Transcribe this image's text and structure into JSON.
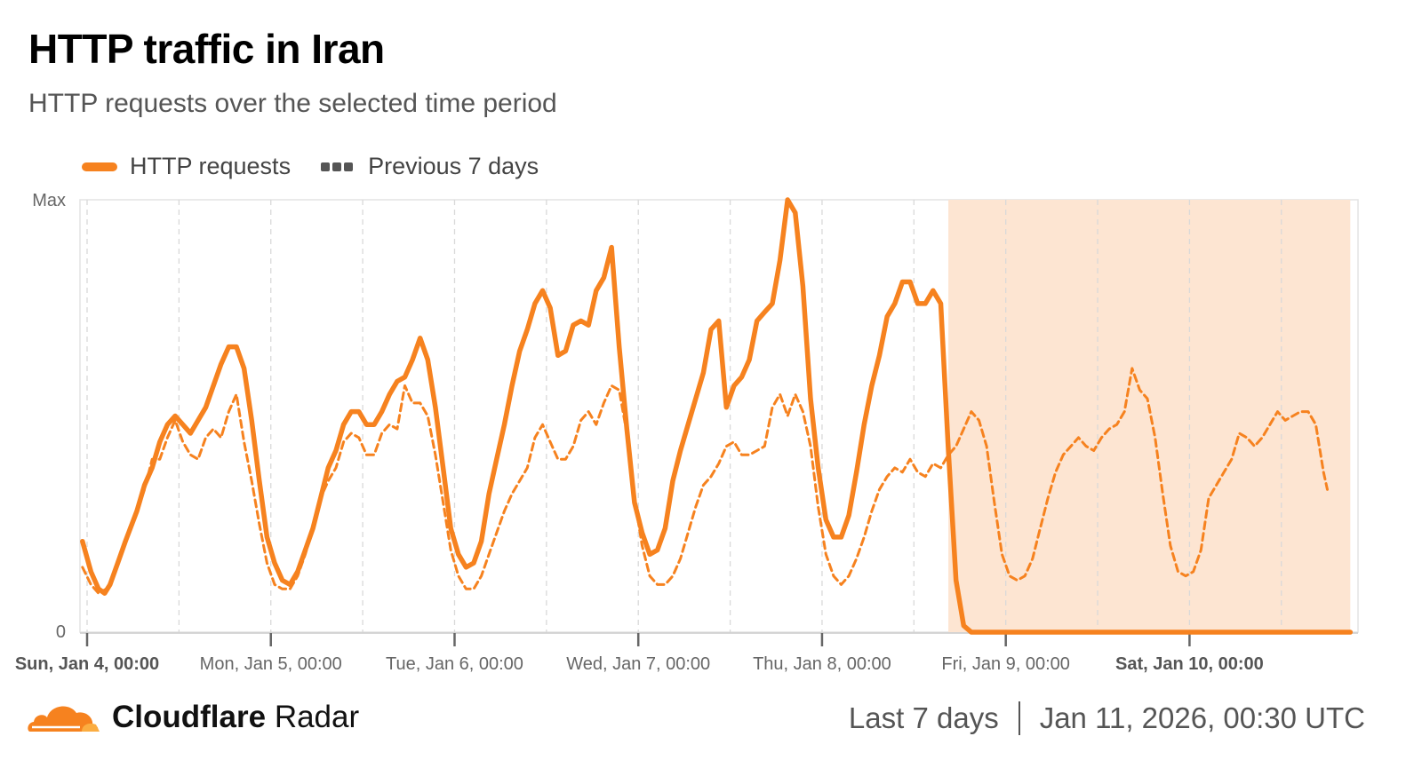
{
  "header": {
    "title": "HTTP traffic in Iran",
    "subtitle": "HTTP requests over the selected time period"
  },
  "legend": {
    "current": "HTTP requests",
    "previous": "Previous 7 days"
  },
  "colors": {
    "accent": "#f6821f",
    "highlight": "#fde5d2",
    "grid": "#d9d9d9",
    "axis": "#666666"
  },
  "footer": {
    "brand_bold": "Cloudflare",
    "brand_rest": "Radar",
    "period": "Last 7 days",
    "timestamp": "Jan 11, 2026, 00:30 UTC"
  },
  "icons": {
    "logo": "cloudflare-cloud-icon"
  },
  "chart_data": {
    "type": "line",
    "ylabel_max": "Max",
    "ylabel_min": "0",
    "ylim": [
      0,
      100
    ],
    "x_range": [
      0,
      165
    ],
    "x_unit": "hours since Sun, Jan 4, 00:00 UTC",
    "x_ticks": [
      {
        "x": 0,
        "label": "Sun, Jan 4, 00:00",
        "bold": true
      },
      {
        "x": 24,
        "label": "Mon, Jan 5, 00:00",
        "bold": false
      },
      {
        "x": 48,
        "label": "Tue, Jan 6, 00:00",
        "bold": false
      },
      {
        "x": 72,
        "label": "Wed, Jan 7, 00:00",
        "bold": false
      },
      {
        "x": 96,
        "label": "Thu, Jan 8, 00:00",
        "bold": false
      },
      {
        "x": 120,
        "label": "Fri, Jan 9, 00:00",
        "bold": false
      },
      {
        "x": 144,
        "label": "Sat, Jan 10, 00:00",
        "bold": true
      }
    ],
    "grid": true,
    "highlight_range": [
      112.5,
      165
    ],
    "series": [
      {
        "name": "HTTP requests",
        "style": "solid",
        "points": [
          [
            -0.6,
            21
          ],
          [
            0.5,
            14
          ],
          [
            1.5,
            10
          ],
          [
            2.3,
            9
          ],
          [
            3,
            11
          ],
          [
            4,
            16
          ],
          [
            5,
            21
          ],
          [
            6.5,
            28
          ],
          [
            7.5,
            34
          ],
          [
            8.5,
            38
          ],
          [
            9.5,
            44
          ],
          [
            10.5,
            48
          ],
          [
            11.5,
            50
          ],
          [
            12.5,
            48
          ],
          [
            13.5,
            46
          ],
          [
            14.5,
            49
          ],
          [
            15.5,
            52
          ],
          [
            16.5,
            57
          ],
          [
            17.5,
            62
          ],
          [
            18.5,
            66
          ],
          [
            19.5,
            66
          ],
          [
            20.5,
            61
          ],
          [
            21.5,
            49
          ],
          [
            22.5,
            35
          ],
          [
            23.5,
            22
          ],
          [
            24.5,
            16
          ],
          [
            25.5,
            12
          ],
          [
            26.5,
            11
          ],
          [
            27.5,
            14
          ],
          [
            28.5,
            19
          ],
          [
            29.5,
            24
          ],
          [
            30.5,
            31
          ],
          [
            31.5,
            38
          ],
          [
            32.5,
            42
          ],
          [
            33.5,
            48
          ],
          [
            34.5,
            51
          ],
          [
            35.5,
            51
          ],
          [
            36.5,
            48
          ],
          [
            37.5,
            48
          ],
          [
            38.5,
            51
          ],
          [
            39.5,
            55
          ],
          [
            40.5,
            58
          ],
          [
            41.5,
            59
          ],
          [
            42.5,
            63
          ],
          [
            43.5,
            68
          ],
          [
            44.5,
            63
          ],
          [
            45.5,
            52
          ],
          [
            46.5,
            38
          ],
          [
            47.5,
            24
          ],
          [
            48.5,
            18
          ],
          [
            49.5,
            15
          ],
          [
            50.5,
            16
          ],
          [
            51.5,
            21
          ],
          [
            52.5,
            32
          ],
          [
            53.5,
            40
          ],
          [
            54.5,
            48
          ],
          [
            55.5,
            57
          ],
          [
            56.5,
            65
          ],
          [
            57.5,
            70
          ],
          [
            58.5,
            76
          ],
          [
            59.5,
            79
          ],
          [
            60.5,
            75
          ],
          [
            61.5,
            64
          ],
          [
            62.5,
            65
          ],
          [
            63.5,
            71
          ],
          [
            64.5,
            72
          ],
          [
            65.5,
            71
          ],
          [
            66.5,
            79
          ],
          [
            67.5,
            82
          ],
          [
            68.5,
            89
          ],
          [
            69.5,
            66
          ],
          [
            70.5,
            47
          ],
          [
            71.5,
            30
          ],
          [
            72.5,
            23
          ],
          [
            73.5,
            18
          ],
          [
            74.5,
            19
          ],
          [
            75.5,
            24
          ],
          [
            76.5,
            35
          ],
          [
            77.5,
            42
          ],
          [
            78.5,
            48
          ],
          [
            79.5,
            54
          ],
          [
            80.5,
            60
          ],
          [
            81.5,
            70
          ],
          [
            82.5,
            72
          ],
          [
            83.5,
            52
          ],
          [
            84.5,
            57
          ],
          [
            85.5,
            59
          ],
          [
            86.5,
            63
          ],
          [
            87.5,
            72
          ],
          [
            88.5,
            74
          ],
          [
            89.5,
            76
          ],
          [
            90.5,
            86
          ],
          [
            91.5,
            100
          ],
          [
            92.5,
            97
          ],
          [
            93.5,
            80
          ],
          [
            94.5,
            54
          ],
          [
            95.5,
            38
          ],
          [
            96.5,
            26
          ],
          [
            97.5,
            22
          ],
          [
            98.5,
            22
          ],
          [
            99.5,
            27
          ],
          [
            100.5,
            37
          ],
          [
            101.5,
            48
          ],
          [
            102.5,
            57
          ],
          [
            103.5,
            64
          ],
          [
            104.5,
            73
          ],
          [
            105.5,
            76
          ],
          [
            106.5,
            81
          ],
          [
            107.5,
            81
          ],
          [
            108.5,
            76
          ],
          [
            109.5,
            76
          ],
          [
            110.5,
            79
          ],
          [
            111.5,
            76
          ],
          [
            112.5,
            42
          ],
          [
            113.5,
            12
          ],
          [
            114.5,
            1.5
          ],
          [
            115.5,
            0
          ],
          [
            120,
            0
          ],
          [
            130,
            0
          ],
          [
            140,
            0
          ],
          [
            150,
            0
          ],
          [
            165,
            0
          ]
        ]
      },
      {
        "name": "Previous 7 days",
        "style": "dashed",
        "points": [
          [
            -0.6,
            15
          ],
          [
            0.5,
            11
          ],
          [
            1.5,
            9
          ],
          [
            2.5,
            10
          ],
          [
            3.5,
            13
          ],
          [
            4.5,
            18
          ],
          [
            5.5,
            24
          ],
          [
            6.5,
            28
          ],
          [
            7.5,
            33
          ],
          [
            8.5,
            40
          ],
          [
            9.5,
            40
          ],
          [
            10.5,
            45
          ],
          [
            11.5,
            49
          ],
          [
            12.5,
            44
          ],
          [
            13.5,
            41
          ],
          [
            14.5,
            40
          ],
          [
            15.5,
            45
          ],
          [
            16.5,
            47
          ],
          [
            17.5,
            45
          ],
          [
            18.5,
            51
          ],
          [
            19.5,
            55
          ],
          [
            20.5,
            44
          ],
          [
            21.5,
            35
          ],
          [
            22.5,
            25
          ],
          [
            23.5,
            16
          ],
          [
            24.5,
            11
          ],
          [
            25.5,
            10
          ],
          [
            26.5,
            10
          ],
          [
            27.5,
            13
          ],
          [
            28.5,
            18
          ],
          [
            29.5,
            24
          ],
          [
            30.5,
            31
          ],
          [
            31.5,
            35
          ],
          [
            32.5,
            38
          ],
          [
            33.5,
            44
          ],
          [
            34.5,
            46
          ],
          [
            35.5,
            45
          ],
          [
            36.5,
            41
          ],
          [
            37.5,
            41
          ],
          [
            38.5,
            46
          ],
          [
            39.5,
            48
          ],
          [
            40.5,
            47
          ],
          [
            41.5,
            57
          ],
          [
            42.5,
            53
          ],
          [
            43.5,
            53
          ],
          [
            44.5,
            50
          ],
          [
            45.5,
            41
          ],
          [
            46.5,
            30
          ],
          [
            47.5,
            19
          ],
          [
            48.5,
            13
          ],
          [
            49.5,
            10
          ],
          [
            50.5,
            10
          ],
          [
            51.5,
            13
          ],
          [
            52.5,
            18
          ],
          [
            53.5,
            23
          ],
          [
            54.5,
            28
          ],
          [
            55.5,
            32
          ],
          [
            56.5,
            35
          ],
          [
            57.5,
            38
          ],
          [
            58.5,
            45
          ],
          [
            59.5,
            48
          ],
          [
            60.5,
            44
          ],
          [
            61.5,
            40
          ],
          [
            62.5,
            40
          ],
          [
            63.5,
            43
          ],
          [
            64.5,
            49
          ],
          [
            65.5,
            51
          ],
          [
            66.5,
            48
          ],
          [
            67.5,
            53
          ],
          [
            68.5,
            57
          ],
          [
            69.5,
            56
          ],
          [
            70.5,
            46
          ],
          [
            71.5,
            31
          ],
          [
            72.5,
            20
          ],
          [
            73.5,
            13
          ],
          [
            74.5,
            11
          ],
          [
            75.5,
            11
          ],
          [
            76.5,
            13
          ],
          [
            77.5,
            17
          ],
          [
            78.5,
            23
          ],
          [
            79.5,
            29
          ],
          [
            80.5,
            34
          ],
          [
            81.5,
            36
          ],
          [
            82.5,
            39
          ],
          [
            83.5,
            43
          ],
          [
            84.5,
            44
          ],
          [
            85.5,
            41
          ],
          [
            86.5,
            41
          ],
          [
            87.5,
            42
          ],
          [
            88.5,
            43
          ],
          [
            89.5,
            52
          ],
          [
            90.5,
            55
          ],
          [
            91.5,
            50
          ],
          [
            92.5,
            55
          ],
          [
            93.5,
            51
          ],
          [
            94.5,
            43
          ],
          [
            95.5,
            29
          ],
          [
            96.5,
            18
          ],
          [
            97.5,
            13
          ],
          [
            98.5,
            11
          ],
          [
            99.5,
            13
          ],
          [
            100.5,
            17
          ],
          [
            101.5,
            22
          ],
          [
            102.5,
            28
          ],
          [
            103.5,
            33
          ],
          [
            104.5,
            36
          ],
          [
            105.5,
            38
          ],
          [
            106.5,
            37
          ],
          [
            107.5,
            40
          ],
          [
            108.5,
            37
          ],
          [
            109.5,
            36
          ],
          [
            110.5,
            39
          ],
          [
            111.5,
            38
          ],
          [
            112.5,
            41
          ],
          [
            113.5,
            43
          ],
          [
            114.5,
            47
          ],
          [
            115.5,
            51
          ],
          [
            116.5,
            49
          ],
          [
            117.5,
            43
          ],
          [
            118.5,
            30
          ],
          [
            119.5,
            18
          ],
          [
            120.5,
            13
          ],
          [
            121.5,
            12
          ],
          [
            122.5,
            13
          ],
          [
            123.5,
            17
          ],
          [
            124.5,
            24
          ],
          [
            125.5,
            31
          ],
          [
            126.5,
            37
          ],
          [
            127.5,
            41
          ],
          [
            128.5,
            43
          ],
          [
            129.5,
            45
          ],
          [
            130.5,
            43
          ],
          [
            131.5,
            42
          ],
          [
            132.5,
            45
          ],
          [
            133.5,
            47
          ],
          [
            134.5,
            48
          ],
          [
            135.5,
            51
          ],
          [
            136.5,
            61
          ],
          [
            137.5,
            56
          ],
          [
            138.5,
            54
          ],
          [
            139.5,
            45
          ],
          [
            140.5,
            32
          ],
          [
            141.5,
            20
          ],
          [
            142.5,
            14
          ],
          [
            143.5,
            13
          ],
          [
            144.5,
            14
          ],
          [
            145.5,
            19
          ],
          [
            146.5,
            31
          ],
          [
            147.5,
            34
          ],
          [
            148.5,
            37
          ],
          [
            149.5,
            40
          ],
          [
            150.5,
            46
          ],
          [
            151.5,
            45
          ],
          [
            152.5,
            43
          ],
          [
            153.5,
            45
          ],
          [
            154.5,
            48
          ],
          [
            155.5,
            51
          ],
          [
            156.5,
            49
          ],
          [
            157.5,
            50
          ],
          [
            158.5,
            51
          ],
          [
            159.5,
            51
          ],
          [
            160.5,
            48
          ],
          [
            161.5,
            37
          ],
          [
            162,
            33
          ]
        ]
      }
    ]
  }
}
